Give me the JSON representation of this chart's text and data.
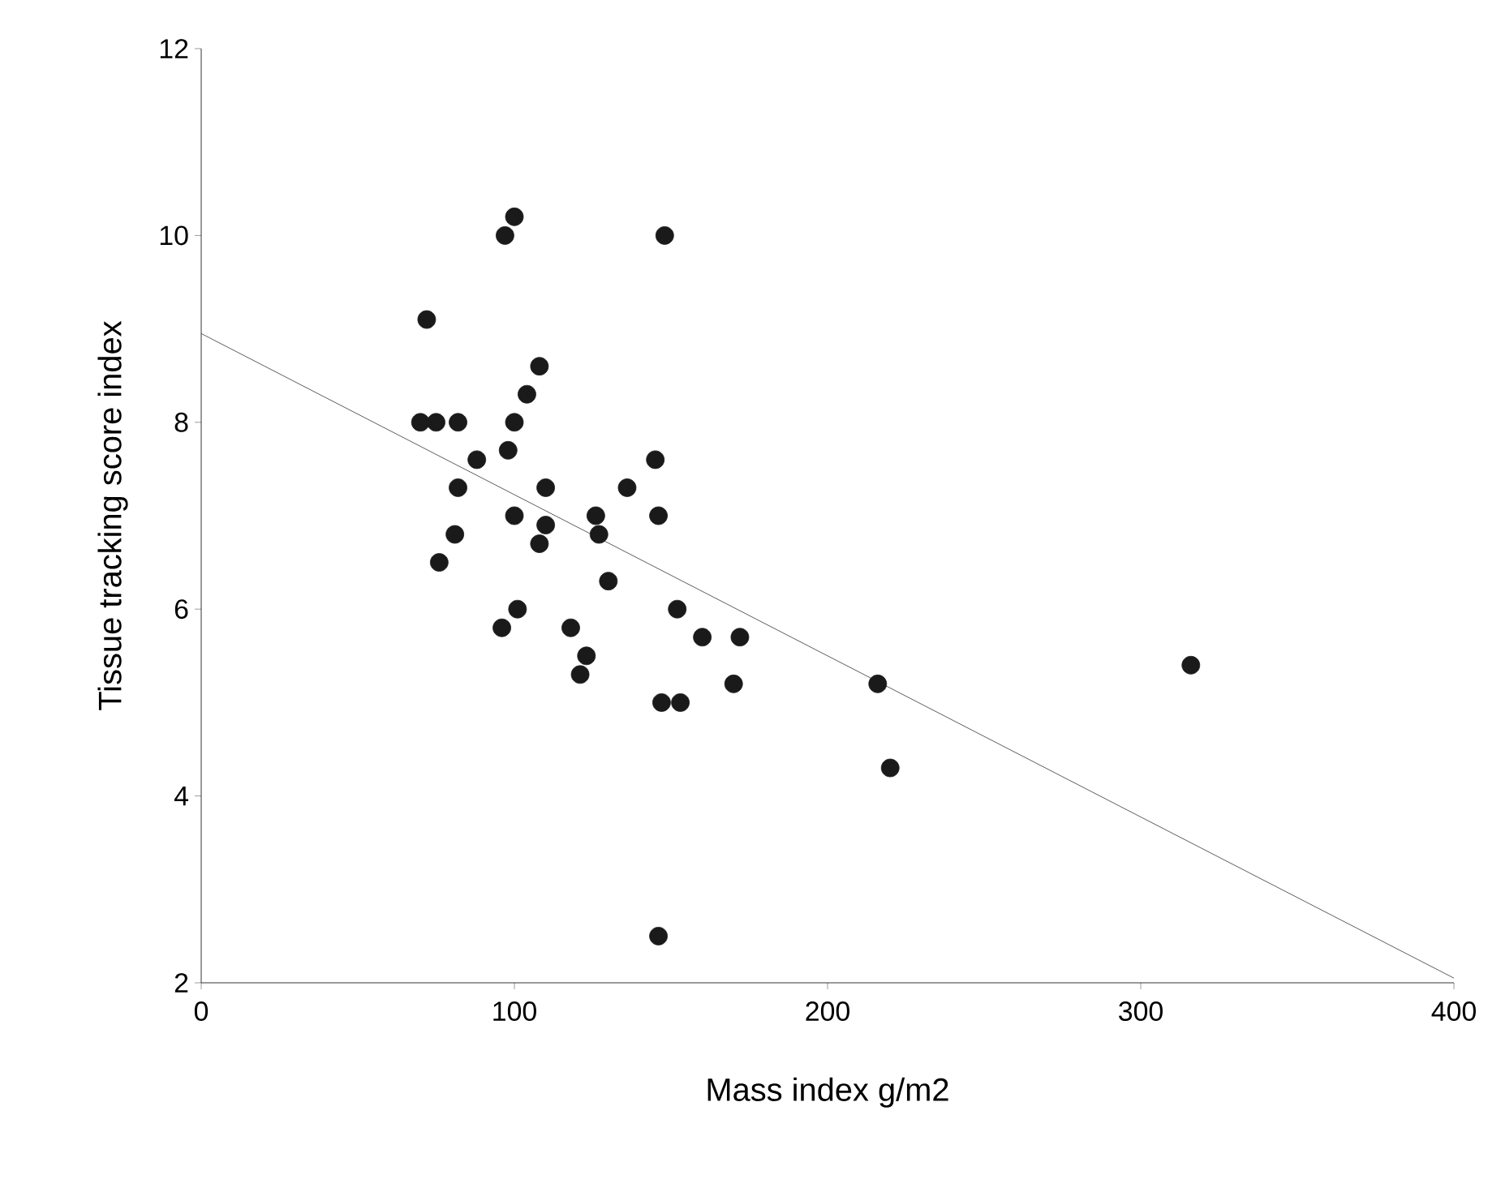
{
  "chart_data": {
    "type": "scatter",
    "xlabel": "Mass index g/m2",
    "ylabel": "Tissue tracking score index",
    "xlim": [
      0,
      400
    ],
    "ylim": [
      2,
      12
    ],
    "xticks": [
      0,
      100,
      200,
      300,
      400
    ],
    "yticks": [
      2,
      4,
      6,
      8,
      10,
      12
    ],
    "grid": false,
    "series": [
      {
        "color": "#1a1a1a",
        "marker": "circle",
        "x": [
          72,
          70,
          75,
          82,
          88,
          97,
          100,
          148,
          100,
          98,
          108,
          104,
          82,
          81,
          76,
          100,
          110,
          110,
          108,
          96,
          101,
          126,
          127,
          130,
          136,
          145,
          146,
          118,
          123,
          121,
          152,
          160,
          172,
          170,
          147,
          153,
          146,
          216,
          220,
          316
        ],
        "values": [
          9.1,
          8,
          8,
          8,
          7.6,
          10,
          10.2,
          10,
          8,
          7.7,
          8.6,
          8.3,
          7.3,
          6.8,
          6.5,
          7,
          7.3,
          6.9,
          6.7,
          5.8,
          6,
          7,
          6.8,
          6.3,
          7.3,
          7.6,
          7,
          5.8,
          5.5,
          5.3,
          6,
          5.7,
          5.7,
          5.2,
          5,
          5,
          2.5,
          5.2,
          4.3,
          5.4
        ]
      },
      {
        "type": "line",
        "color": "#333333",
        "x": [
          0,
          400
        ],
        "values": [
          8.95,
          2.05
        ]
      }
    ]
  }
}
